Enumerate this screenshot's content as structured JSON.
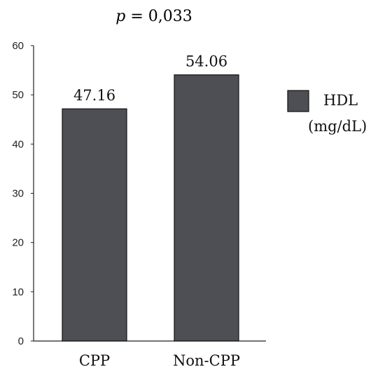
{
  "chart_data": {
    "type": "bar",
    "title_italic": "p",
    "title_rest": " = 0,033",
    "categories": [
      "CPP",
      "Non-CPP"
    ],
    "series": [
      {
        "name_line1": "HDL",
        "name_line2": "(mg/dL)",
        "values": [
          47.16,
          54.06
        ],
        "value_labels": [
          "47.16",
          "54.06"
        ]
      }
    ],
    "ylim": [
      0,
      60
    ],
    "yticks": [
      "0",
      "10",
      "20",
      "30",
      "40",
      "50",
      "60"
    ],
    "legend_position": "right",
    "grid": false,
    "colors": {
      "bar": "#4d4f55",
      "bar_edge": "#111111",
      "axis": "#222222"
    }
  }
}
